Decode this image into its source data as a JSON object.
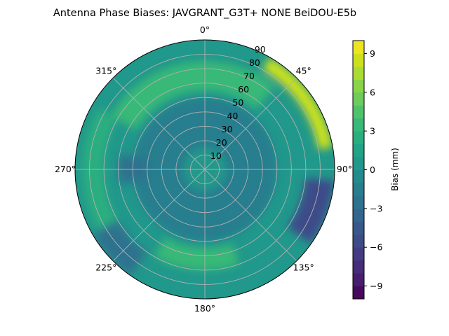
{
  "chart_data": {
    "type": "polar-contour",
    "title": "Antenna Phase Biases: JAVGRANT_G3T+   NONE BeiDOU-E5b",
    "theta_ticks": [
      "0°",
      "45°",
      "90°",
      "135°",
      "180°",
      "225°",
      "270°",
      "315°"
    ],
    "theta_tick_values": [
      0,
      45,
      90,
      135,
      180,
      225,
      270,
      315
    ],
    "r_ticks": [
      "10",
      "20",
      "30",
      "40",
      "50",
      "60",
      "70",
      "80",
      "90"
    ],
    "r_tick_values": [
      10,
      20,
      30,
      40,
      50,
      60,
      70,
      80,
      90
    ],
    "rlim": [
      0,
      90
    ],
    "theta_direction": "clockwise",
    "theta_zero": "top",
    "grid": true,
    "colorbar": {
      "label": "Bias (mm)",
      "ticks": [
        "−9",
        "−6",
        "−3",
        "0",
        "3",
        "6",
        "9"
      ],
      "tick_values": [
        -9,
        -6,
        -3,
        0,
        3,
        6,
        9
      ],
      "range": [
        -10,
        10
      ],
      "levels": 20,
      "colormap": "viridis",
      "placement": "right"
    },
    "base_value": 0.5,
    "regions": [
      {
        "az": [
          0,
          360
        ],
        "zen": [
          15,
          50
        ],
        "value": -2
      },
      {
        "az": [
          0,
          360
        ],
        "zen": [
          0,
          12
        ],
        "value": 0
      },
      {
        "az": [
          300,
          40
        ],
        "zen": [
          55,
          75
        ],
        "value": 3.5
      },
      {
        "az": [
          160,
          210
        ],
        "zen": [
          55,
          70
        ],
        "value": 3.5
      },
      {
        "az": [
          240,
          300
        ],
        "zen": [
          70,
          85
        ],
        "value": 2
      },
      {
        "az": [
          30,
          80
        ],
        "zen": [
          80,
          90
        ],
        "value": 8
      },
      {
        "az": [
          95,
          125
        ],
        "zen": [
          70,
          90
        ],
        "value": -6
      },
      {
        "az": [
          215,
          240
        ],
        "zen": [
          70,
          90
        ],
        "value": -3
      },
      {
        "az": [
          260,
          280
        ],
        "zen": [
          40,
          60
        ],
        "value": -3
      }
    ]
  }
}
